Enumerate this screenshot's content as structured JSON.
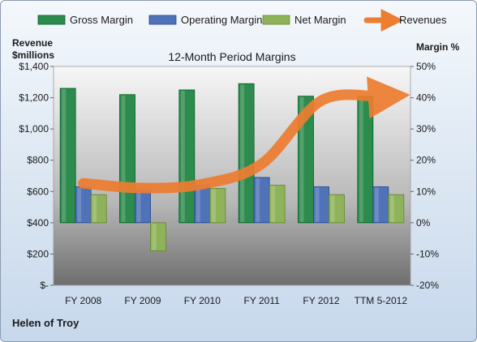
{
  "chart_data": {
    "type": "bar",
    "title": "12-Month Period Margins",
    "company": "Helen of Troy",
    "categories": [
      "FY 2008",
      "FY 2009",
      "FY 2010",
      "FY 2011",
      "FY 2012",
      "TTM 5-2012"
    ],
    "left_axis": {
      "label_line1": "Revenue",
      "label_line2": "$millions",
      "range": [
        0,
        1400
      ],
      "ticks": [
        0,
        200,
        400,
        600,
        800,
        1000,
        1200,
        1400
      ],
      "tick_labels": [
        "$-",
        "$200",
        "$400",
        "$600",
        "$800",
        "$1,000",
        "$1,200",
        "$1,400"
      ]
    },
    "right_axis": {
      "label": "Margin %",
      "range": [
        -20,
        50
      ],
      "ticks": [
        -20,
        -10,
        0,
        10,
        20,
        30,
        40,
        50
      ],
      "tick_labels": [
        "-20%",
        "-10%",
        "0%",
        "10%",
        "20%",
        "30%",
        "40%",
        "50%"
      ]
    },
    "series": [
      {
        "name": "Gross Margin",
        "kind": "bar",
        "axis": "right",
        "color": "#2e8b4e",
        "values": [
          43,
          41,
          42.5,
          44.5,
          40.5,
          40.5
        ]
      },
      {
        "name": "Operating Margin",
        "kind": "bar",
        "axis": "right",
        "color": "#4f72b8",
        "values": [
          11.5,
          10.5,
          12,
          14.5,
          11.5,
          11.5
        ]
      },
      {
        "name": "Net Margin",
        "kind": "bar",
        "axis": "right",
        "color": "#8fb35a",
        "values": [
          9,
          -9,
          11,
          12,
          9,
          9
        ]
      },
      {
        "name": "Revenues",
        "kind": "line",
        "axis": "left",
        "color": "#ed7d31",
        "values": [
          652,
          622,
          647,
          777,
          1181,
          1206
        ]
      }
    ],
    "legend_position": "top",
    "grid": false
  }
}
